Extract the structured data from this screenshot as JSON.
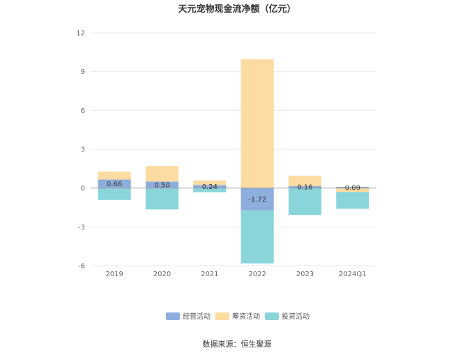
{
  "chart_data": {
    "type": "bar",
    "stacked": true,
    "title": "天元宠物现金流净额（亿元）",
    "categories": [
      "2019",
      "2020",
      "2021",
      "2022",
      "2023",
      "2024Q1"
    ],
    "ylim": [
      -6,
      12
    ],
    "yticks": [
      "12",
      "9",
      "6",
      "3",
      "0",
      "-3",
      "-6"
    ],
    "ytick_values": [
      12,
      9,
      6,
      3,
      0,
      -3,
      -6
    ],
    "grid": true,
    "legend_position": "bottom",
    "series": [
      {
        "name": "经营活动",
        "color": "#8eaede",
        "values": [
          0.66,
          0.5,
          0.24,
          -1.72,
          0.16,
          0.09
        ]
      },
      {
        "name": "筹资活动",
        "color": "#fddca2",
        "values": [
          0.62,
          1.2,
          0.35,
          9.95,
          0.8,
          -0.3
        ]
      },
      {
        "name": "投资活动",
        "color": "#8ad5da",
        "values": [
          -0.92,
          -1.65,
          -0.32,
          -4.1,
          -2.08,
          -1.3
        ]
      }
    ],
    "data_labels": [
      "0.66",
      "0.50",
      "0.24",
      "-1.72",
      "0.16",
      "0.09"
    ],
    "source": "数据来源：恒生聚源"
  }
}
